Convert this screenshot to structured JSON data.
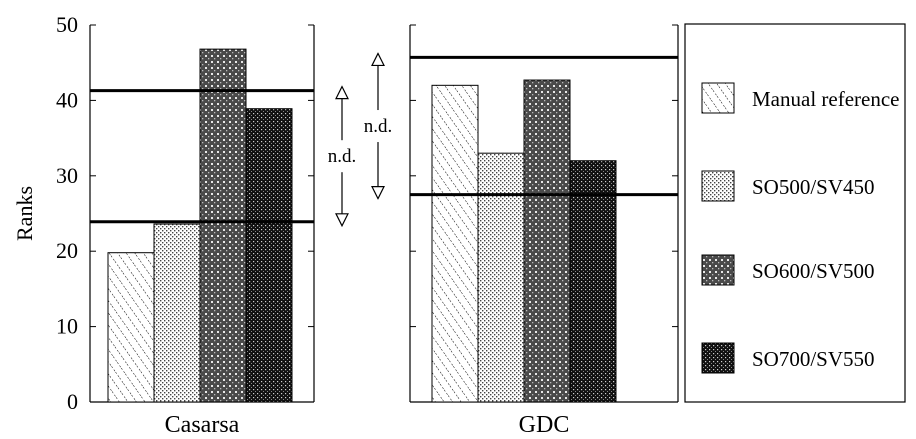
{
  "chart_data": {
    "type": "bar",
    "ylabel": "Ranks",
    "ylim": [
      0,
      50
    ],
    "yticks": [
      "0",
      "10",
      "20",
      "30",
      "40",
      "50"
    ],
    "categories": [
      "Casarsa",
      "GDC"
    ],
    "series": [
      {
        "name": "Manual reference",
        "pattern": "hatch",
        "values": [
          19.8,
          42
        ]
      },
      {
        "name": "SO500/SV450",
        "pattern": "light-dots",
        "values": [
          23.6,
          33
        ]
      },
      {
        "name": "SO600/SV500",
        "pattern": "grid",
        "values": [
          46.8,
          42.7
        ]
      },
      {
        "name": "SO700/SV550",
        "pattern": "dark-dots",
        "values": [
          38.9,
          32
        ]
      }
    ],
    "thresholds": [
      {
        "panel": 0,
        "upper": 41.3,
        "lower": 23.9
      },
      {
        "panel": 1,
        "upper": 45.7,
        "lower": 27.5
      }
    ],
    "annotations": [
      {
        "text": "n.d.",
        "panel": 0
      },
      {
        "text": "n.d.",
        "panel": 1
      }
    ],
    "legend_position": "right"
  }
}
